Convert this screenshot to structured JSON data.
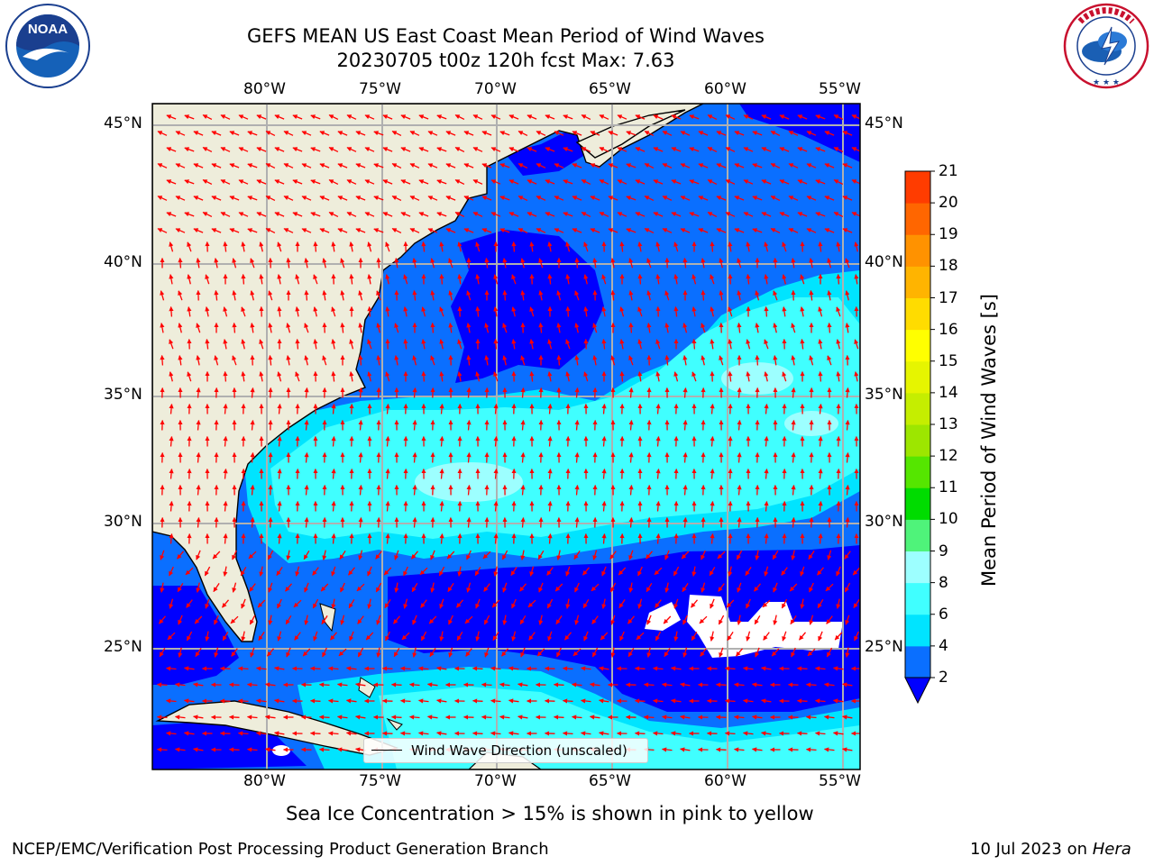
{
  "header": {
    "title_line1": "GEFS MEAN US East Coast Mean Period of Wind Waves",
    "title_line2": "20230705 t00z 120h fcst   Max: 7.63"
  },
  "logos": {
    "noaa_text": "NOAA",
    "noaa_ring_text": "NATIONAL OCEANIC AND ATMOSPHERIC ADMINISTRATION · U.S. DEPARTMENT OF COMMERCE",
    "nws_ring_text": "NATIONAL WEATHER SERVICE"
  },
  "map": {
    "lon_labels": [
      "80°W",
      "75°W",
      "70°W",
      "65°W",
      "60°W",
      "55°W"
    ],
    "lat_labels": [
      "45°N",
      "40°N",
      "35°N",
      "30°N",
      "25°N"
    ],
    "legend_label": "Wind Wave Direction (unscaled)",
    "arrow_color": "#ff0000",
    "land_color": "#eeeddb",
    "gridline_color": "#b0b0b0"
  },
  "colorbar": {
    "title": "Mean Period of Wind Waves [s]",
    "ticks": [
      "2",
      "4",
      "6",
      "8",
      "9",
      "10",
      "11",
      "12",
      "13",
      "14",
      "15",
      "16",
      "17",
      "18",
      "19",
      "20",
      "21"
    ],
    "colors": [
      "#0a6fff",
      "#00e4ff",
      "#40ffff",
      "#9dffff",
      "#4ff37a",
      "#00dc00",
      "#55e600",
      "#9de600",
      "#c5ee00",
      "#e6f500",
      "#ffff00",
      "#ffdc00",
      "#ffb400",
      "#ff9200",
      "#ff6600",
      "#ff3c00",
      "#ff0000"
    ],
    "extend_color": "#0000ff",
    "levels": [
      {
        "value": "2-4",
        "color": "#0a6fff"
      },
      {
        "value": "4-6",
        "color": "#00e4ff"
      },
      {
        "value": "6-8",
        "color": "#40ffff"
      },
      {
        "value": "8-9",
        "color": "#9dffff"
      }
    ]
  },
  "notes": {
    "sea_ice": "Sea Ice Concentration > 15% is shown in pink to yellow"
  },
  "footer": {
    "left": "NCEP/EMC/Verification Post Processing Product Generation Branch",
    "date": "10 Jul 2023 on ",
    "machine": "Hera"
  }
}
